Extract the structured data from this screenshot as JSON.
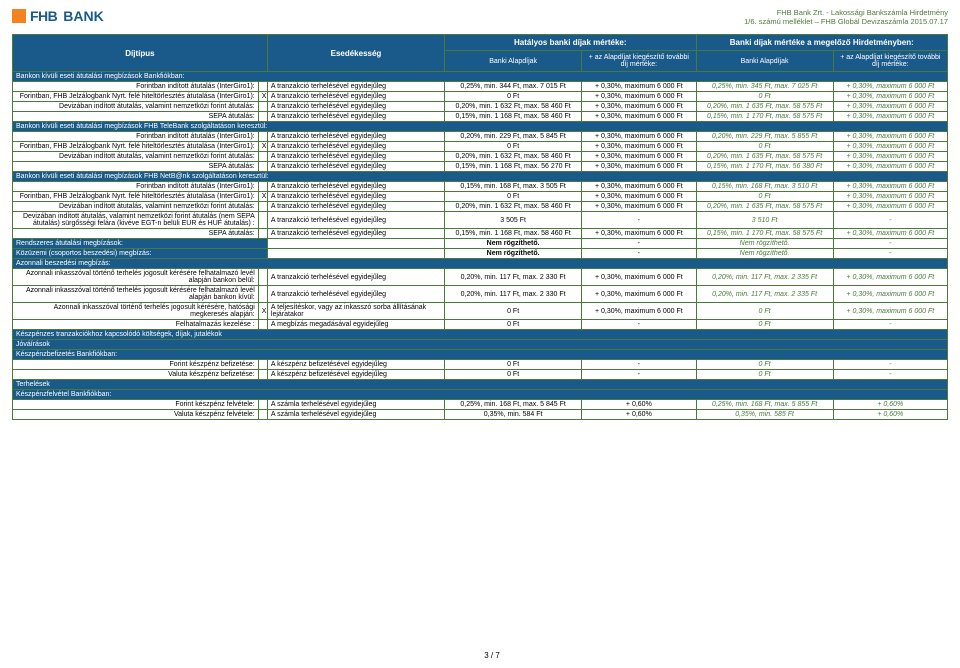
{
  "header": {
    "bank": "FHB",
    "bank2": "BANK",
    "r1": "FHB Bank Zrt. - Lakossági Bankszámla Hirdetmény",
    "r2": "1/6. számú melléklet – FHB Globál Devizaszámla 2015.07.17"
  },
  "thead": {
    "t1": "Díjtípus",
    "t2": "Esedékesség",
    "t3": "Hatályos banki díjak mértéke:",
    "t4": "Banki díjak mértéke a megelőző Hirdetményben:",
    "s1": "Banki Alapdíjak",
    "s2": "+ az Alapdíjat kiegészítő további díj mértéke:",
    "s3": "Banki Alapdíjak",
    "s4": "+ az Alapdíjat kiegészítő további díj mértéke:"
  },
  "sections": [
    {
      "h": "Bankon kívüli eseti átutalási megbízások Bankfiókban:",
      "rows": [
        {
          "c1": "Forintban indított átutalás (InterGiro1):",
          "c2": "A tranzakció terhelésével egyidejűleg",
          "c3": "0,25%, min. 344 Ft, max. 7 015 Ft",
          "c4": "+ 0,30%, maximum 6 000 Ft",
          "c5": "0,25%, min. 345 Ft, max. 7 025 Ft",
          "c6": "+ 0,30%, maximum 6 000 Ft"
        },
        {
          "c1": "Forintban, FHB Jelzálogbank Nyrt. felé hiteltörlesztés átutalása (InterGiro1):",
          "x": "X",
          "c2": "A tranzakció terhelésével egyidejűleg",
          "c3": "0 Ft",
          "c4": "+ 0,30%, maximum 6 000 Ft",
          "c5": "0 Ft",
          "c6": "+ 0,30%, maximum 6 000 Ft"
        },
        {
          "c1": "Devizában indított átutalás, valamint nemzetközi forint átutalás:",
          "c2": "A tranzakció terhelésével egyidejűleg",
          "c3": "0,20%, min. 1 632 Ft, max. 58 460 Ft",
          "c4": "+ 0,30%, maximum 6 000 Ft",
          "c5": "0,20%, min. 1 635 Ft, max. 58 575 Ft",
          "c6": "+ 0,30%, maximum 6 000 Ft"
        },
        {
          "c1": "SEPA átutalás:",
          "c2": "A tranzakció terhelésével egyidejűleg",
          "c3": "0,15%, min. 1 168 Ft, max. 58 460 Ft",
          "c4": "+ 0,30%, maximum 6 000 Ft",
          "c5": "0,15%, min. 1 170 Ft, max. 58 575 Ft",
          "c6": "+ 0,30%, maximum 6 000 Ft"
        }
      ]
    },
    {
      "h": "Bankon kívüli eseti átutalási megbízások FHB TeleBank szolgáltatáson keresztül:",
      "rows": [
        {
          "c1": "Forintban indított átutalás (InterGiro1):",
          "c2": "A tranzakció terhelésével egyidejűleg",
          "c3": "0,20%, min. 229 Ft, max. 5 845 Ft",
          "c4": "+ 0,30%, maximum 6 000 Ft",
          "c5": "0,20%, min. 229 Ft, max. 5 855 Ft",
          "c6": "+ 0,30%, maximum 6 000 Ft"
        },
        {
          "c1": "Forintban, FHB Jelzálogbank Nyrt. felé hiteltörlesztés átutalása (InterGiro1):",
          "x": "X",
          "c2": "A tranzakció terhelésével egyidejűleg",
          "c3": "0 Ft",
          "c4": "+ 0,30%, maximum 6 000 Ft",
          "c5": "0 Ft",
          "c6": "+ 0,30%, maximum 6 000 Ft"
        },
        {
          "c1": "Devizában indított átutalás, valamint nemzetközi forint átutalás:",
          "c2": "A tranzakció terhelésével egyidejűleg",
          "c3": "0,20%, min. 1 632 Ft, max. 58 460 Ft",
          "c4": "+ 0,30%, maximum 6 000 Ft",
          "c5": "0,20%, min. 1 635 Ft, max. 58 575 Ft",
          "c6": "+ 0,30%, maximum 6 000 Ft"
        },
        {
          "c1": "SEPA átutalás:",
          "c2": "A tranzakció terhelésével egyidejűleg",
          "c3": "0,15%, min. 1 168 Ft, max. 56 270 Ft",
          "c4": "+ 0,30%, maximum 6 000 Ft",
          "c5": "0,15%, min. 1 170 Ft, max. 56 380 Ft",
          "c6": "+ 0,30%, maximum 6 000 Ft"
        }
      ]
    },
    {
      "h": "Bankon kívüli eseti átutalási megbízások FHB NetB@nk szolgáltatáson keresztül:",
      "rows": [
        {
          "c1": "Forintban indított átutalás (InterGiro1):",
          "c2": "A tranzakció terhelésével egyidejűleg",
          "c3": "0,15%, min. 168 Ft, max. 3 505 Ft",
          "c4": "+ 0,30%, maximum 6 000 Ft",
          "c5": "0,15%, min. 168 Ft, max. 3 510 Ft",
          "c6": "+ 0,30%, maximum 6 000 Ft"
        },
        {
          "c1": "Forintban, FHB Jelzálogbank Nyrt. felé hiteltörlesztés átutalása (InterGiro1):",
          "x": "X",
          "c2": "A tranzakció terhelésével egyidejűleg",
          "c3": "0 Ft",
          "c4": "+ 0,30%, maximum 6 000 Ft",
          "c5": "0 Ft",
          "c6": "+ 0,30%, maximum 6 000 Ft"
        },
        {
          "c1": "Devizában indított átutalás, valamint nemzetközi forint átutalás:",
          "c2": "A tranzakció terhelésével egyidejűleg",
          "c3": "0,20%, min. 1 632 Ft, max. 58 460 Ft",
          "c4": "+ 0,30%, maximum 6 000 Ft",
          "c5": "0,20%, min. 1 635 Ft, max. 58 575 Ft",
          "c6": "+ 0,30%, maximum 6 000 Ft"
        },
        {
          "c1": "Devizában indított átutalás, valamint nemzetközi forint átutalás (nem SEPA átutalás) sürgősségi felára (kivéve EGT-n belüli EUR és HUF átutalás) :",
          "c2": "A tranzakció terhelésével egyidejűleg",
          "c3": "3 505 Ft",
          "c4": "-",
          "c5": "3 510 Ft",
          "c6": "-"
        },
        {
          "c1": "SEPA átutalás:",
          "c2": "A tranzakció terhelésével egyidejűleg",
          "c3": "0,15%, min. 1 168 Ft, max. 58 460 Ft",
          "c4": "+ 0,30%, maximum 6 000 Ft",
          "c5": "0,15%, min. 1 170 Ft, max. 58 575 Ft",
          "c6": "+ 0,30%, maximum 6 000 Ft"
        }
      ]
    },
    {
      "h": "Rendszeres átutalási megbízások:",
      "rows": [
        {
          "c1": "",
          "c2": "",
          "c3": "Nem rögzíthető.",
          "c4": "-",
          "c5": "Nem rögzíthető.",
          "c6": "-"
        }
      ],
      "inline": true
    },
    {
      "h": "Közüzemi (csoportos beszedési) megbízás:",
      "rows": [
        {
          "c1": "",
          "c2": "",
          "c3": "Nem rögzíthető.",
          "c4": "-",
          "c5": "Nem rögzíthető.",
          "c6": "-"
        }
      ],
      "inline": true
    },
    {
      "h": "Azonnali beszedési megbízás:",
      "rows": [
        {
          "c1": "Azonnali inkasszóval történő terhelés jogosult kérésére felhatalmazó levél alapján bankon belül:",
          "c2": "A tranzakció terhelésével egyidejűleg",
          "c3": "0,20%, min. 117 Ft, max. 2 330 Ft",
          "c4": "+ 0,30%, maximum 6 000 Ft",
          "c5": "0,20%, min. 117 Ft, max. 2 335 Ft",
          "c6": "+ 0,30%, maximum 6 000 Ft"
        },
        {
          "c1": "Azonnali inkasszóval történő terhelés jogosult kérésére felhatalmazó levél alapján bankon kívül:",
          "c2": "A tranzakció terhelésével egyidejűleg",
          "c3": "0,20%, min. 117 Ft, max. 2 330 Ft",
          "c4": "+ 0,30%, maximum 6 000 Ft",
          "c5": "0,20%, min. 117 Ft, max. 2 335 Ft",
          "c6": "+ 0,30%, maximum 6 000 Ft"
        },
        {
          "c1": "Azonnali inkasszóval történő terhelés jogosult kérésére, hatósági megkeresés alapján:",
          "x": "X",
          "c2": "A teljesítéskor, vagy az inkasszó sorba állításának lejáratakor",
          "c3": "0 Ft",
          "c4": "+ 0,30%, maximum 6 000 Ft",
          "c5": "0 Ft",
          "c6": "+ 0,30%, maximum 6 000 Ft"
        },
        {
          "c1": "Felhatalmazás kezelése :",
          "c2": "A megbízás megadásával egyidejűleg",
          "c3": "0 Ft",
          "c4": "-",
          "c5": "0 Ft",
          "c6": "-"
        }
      ]
    },
    {
      "h": "Készpénzes tranzakciókhoz kapcsolódó költségek, díjak, jutalékok",
      "rows": []
    },
    {
      "h": "Jóváírások",
      "rows": []
    },
    {
      "h": "Készpénzbefizetés Bankfiókban:",
      "rows": [
        {
          "c1": "Forint készpénz befizetése:",
          "c2": "A készpénz befizetésével egyidejűleg",
          "c3": "0 Ft",
          "c4": "-",
          "c5": "0 Ft",
          "c6": "-"
        },
        {
          "c1": "Valuta készpénz befizetése:",
          "c2": "A készpénz befizetésével egyidejűleg",
          "c3": "0 Ft",
          "c4": "-",
          "c5": "0 Ft",
          "c6": "-"
        }
      ]
    },
    {
      "h": "Terhelések",
      "rows": []
    },
    {
      "h": "Készpénzfelvétel Bankfiókban:",
      "rows": [
        {
          "c1": "Forint készpénz felvétele:",
          "c2": "A számla terhelésével egyidejűleg",
          "c3": "0,25%, min. 168 Ft, max. 5 845 Ft",
          "c4": "+ 0,60%",
          "c5": "0,25%, min. 168 Ft, max. 5 855 Ft",
          "c6": "+ 0,60%"
        },
        {
          "c1": "Valuta készpénz felvétele:",
          "c2": "A számla terhelésével egyidejűleg",
          "c3": "0,35%, min. 584 Ft",
          "c4": "+ 0,60%",
          "c5": "0,35%, min. 585 Ft",
          "c6": "+ 0,60%"
        }
      ]
    }
  ],
  "footer": "3 / 7"
}
